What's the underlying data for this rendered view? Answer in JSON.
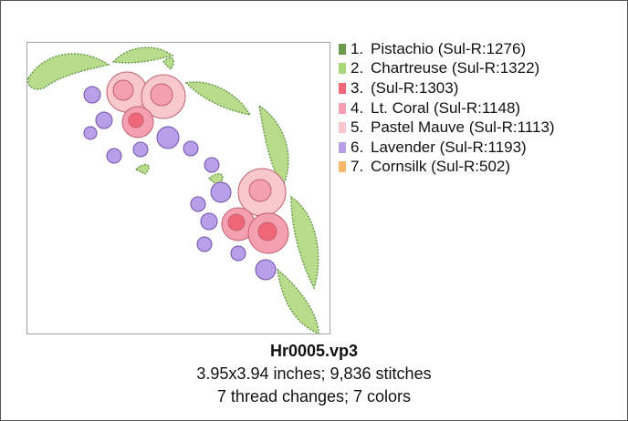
{
  "design": {
    "threads": [
      {
        "number": "1.",
        "name": "Pistachio (Sul-R:1276)",
        "color": "#6a9a4a"
      },
      {
        "number": "2.",
        "name": "Chartreuse (Sul-R:1322)",
        "color": "#a8d878"
      },
      {
        "number": "3.",
        "name": "(Sul-R:1303)",
        "color": "#f06878"
      },
      {
        "number": "4.",
        "name": "Lt. Coral (Sul-R:1148)",
        "color": "#f4a0b0"
      },
      {
        "number": "5.",
        "name": "Pastel Mauve (Sul-R:1113)",
        "color": "#f8c8cc"
      },
      {
        "number": "6.",
        "name": "Lavender (Sul-R:1193)",
        "color": "#b8a0e8"
      },
      {
        "number": "7.",
        "name": "Cornsilk (Sul-R:502)",
        "color": "#f8b868"
      }
    ],
    "filename": "Hr0005.vp3",
    "size_line": "3.95x3.94 inches; 9,836 stitches",
    "changes_line": "7 thread changes; 7 colors"
  }
}
